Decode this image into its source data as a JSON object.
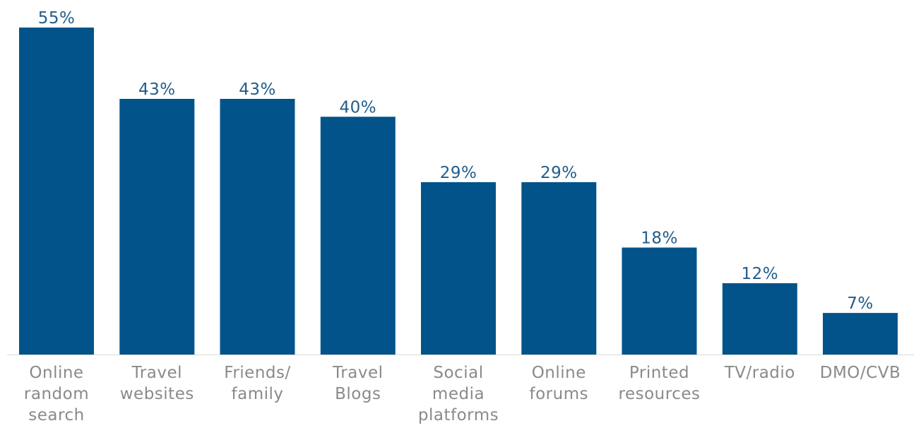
{
  "chart_data": {
    "type": "bar",
    "title": "",
    "xlabel": "",
    "ylabel": "",
    "ylim": [
      0,
      55
    ],
    "grid": false,
    "categories": [
      [
        "Online",
        "random",
        "search"
      ],
      [
        "Travel",
        "websites"
      ],
      [
        "Friends/",
        "family"
      ],
      [
        "Travel",
        "Blogs"
      ],
      [
        "Social",
        "media",
        "platforms"
      ],
      [
        "Online",
        "forums"
      ],
      [
        "Printed",
        "resources"
      ],
      [
        "TV/radio"
      ],
      [
        "DMO/CVB"
      ]
    ],
    "values": [
      55,
      43,
      43,
      40,
      29,
      29,
      18,
      12,
      7
    ],
    "value_labels": [
      "55%",
      "43%",
      "43%",
      "40%",
      "29%",
      "29%",
      "18%",
      "12%",
      "7%"
    ]
  },
  "colors": {
    "bar": "#02538a",
    "value_label": "#215d8c",
    "category_label": "#8a8a8a",
    "baseline": "#d9d9d9"
  }
}
